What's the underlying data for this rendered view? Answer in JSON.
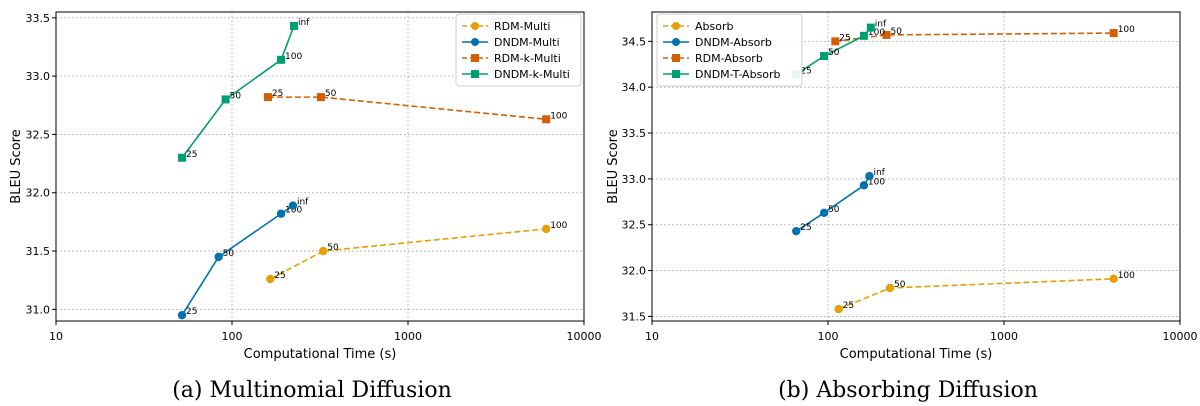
{
  "colors": {
    "orange": "#e69f00",
    "blue": "#0072b2",
    "vermillion": "#d55e00",
    "green": "#009e73"
  },
  "chart_data": [
    {
      "type": "line",
      "caption": "(a) Multinomial Diffusion",
      "xlabel": "Computational Time (s)",
      "ylabel": "BLEU Score",
      "xscale": "log",
      "xlim": [
        10,
        10000
      ],
      "ylim": [
        30.9,
        33.55
      ],
      "xticks": [
        10,
        100,
        1000,
        10000
      ],
      "xtick_labels": [
        "10",
        "100",
        "1000",
        "10000"
      ],
      "yticks": [
        31.0,
        31.5,
        32.0,
        32.5,
        33.0,
        33.5
      ],
      "ytick_labels": [
        "31.0",
        "31.5",
        "32.0",
        "32.5",
        "33.0",
        "33.5"
      ],
      "grid": true,
      "legend_position": "top-right",
      "series": [
        {
          "name": "RDM-Multi",
          "color": "#e69f00",
          "marker": "circle",
          "dashed": true,
          "points": [
            {
              "x": 165,
              "y": 31.26,
              "label": "25"
            },
            {
              "x": 330,
              "y": 31.5,
              "label": "50"
            },
            {
              "x": 6100,
              "y": 31.69,
              "label": "100"
            }
          ]
        },
        {
          "name": "DNDM-Multi",
          "color": "#0072b2",
          "marker": "circle",
          "dashed": false,
          "points": [
            {
              "x": 52,
              "y": 30.95,
              "label": "25"
            },
            {
              "x": 84,
              "y": 31.45,
              "label": "50"
            },
            {
              "x": 190,
              "y": 31.82,
              "label": "100"
            },
            {
              "x": 222,
              "y": 31.89,
              "label": "inf"
            }
          ]
        },
        {
          "name": "RDM-k-Multi",
          "color": "#d55e00",
          "marker": "square",
          "dashed": true,
          "points": [
            {
              "x": 160,
              "y": 32.82,
              "label": "25"
            },
            {
              "x": 320,
              "y": 32.82,
              "label": "50"
            },
            {
              "x": 6100,
              "y": 32.63,
              "label": "100"
            }
          ]
        },
        {
          "name": "DNDM-k-Multi",
          "color": "#009e73",
          "marker": "square",
          "dashed": false,
          "points": [
            {
              "x": 52,
              "y": 32.3,
              "label": "25"
            },
            {
              "x": 92,
              "y": 32.8,
              "label": "50"
            },
            {
              "x": 190,
              "y": 33.14,
              "label": "100"
            },
            {
              "x": 225,
              "y": 33.43,
              "label": "inf"
            }
          ]
        }
      ]
    },
    {
      "type": "line",
      "caption": "(b) Absorbing Diffusion",
      "xlabel": "Computational Time (s)",
      "ylabel": "BLEU Score",
      "xscale": "log",
      "xlim": [
        10,
        10000
      ],
      "ylim": [
        31.45,
        34.82
      ],
      "xticks": [
        10,
        100,
        1000,
        10000
      ],
      "xtick_labels": [
        "10",
        "100",
        "1000",
        "10000"
      ],
      "yticks": [
        31.5,
        32.0,
        32.5,
        33.0,
        33.5,
        34.0,
        34.5
      ],
      "ytick_labels": [
        "31.5",
        "32.0",
        "32.5",
        "33.0",
        "33.5",
        "34.0",
        "34.5"
      ],
      "grid": true,
      "legend_position": "top-left",
      "series": [
        {
          "name": "Absorb",
          "color": "#e69f00",
          "marker": "circle",
          "dashed": true,
          "points": [
            {
              "x": 115,
              "y": 31.58,
              "label": "25"
            },
            {
              "x": 225,
              "y": 31.81,
              "label": "50"
            },
            {
              "x": 4200,
              "y": 31.91,
              "label": "100"
            }
          ]
        },
        {
          "name": "DNDM-Absorb",
          "color": "#0072b2",
          "marker": "circle",
          "dashed": false,
          "points": [
            {
              "x": 66,
              "y": 32.43,
              "label": "25"
            },
            {
              "x": 95,
              "y": 32.63,
              "label": "50"
            },
            {
              "x": 160,
              "y": 32.93,
              "label": "100"
            },
            {
              "x": 172,
              "y": 33.03,
              "label": "inf"
            }
          ]
        },
        {
          "name": "RDM-Absorb",
          "color": "#d55e00",
          "marker": "square",
          "dashed": true,
          "points": [
            {
              "x": 110,
              "y": 34.5,
              "label": "25"
            },
            {
              "x": 215,
              "y": 34.57,
              "label": "50"
            },
            {
              "x": 4200,
              "y": 34.59,
              "label": "100"
            }
          ]
        },
        {
          "name": "DNDM-T-Absorb",
          "color": "#009e73",
          "marker": "square",
          "dashed": false,
          "points": [
            {
              "x": 66,
              "y": 34.14,
              "label": "25"
            },
            {
              "x": 95,
              "y": 34.34,
              "label": "50"
            },
            {
              "x": 160,
              "y": 34.56,
              "label": "100"
            },
            {
              "x": 175,
              "y": 34.65,
              "label": "inf"
            }
          ]
        }
      ]
    }
  ]
}
